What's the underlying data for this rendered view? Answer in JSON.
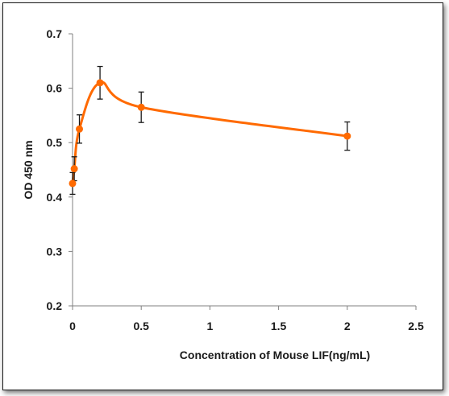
{
  "chart_data": {
    "type": "line",
    "title": "",
    "xlabel": "Concentration of Mouse LIF(ng/mL)",
    "ylabel": "OD 450 nm",
    "xlim": [
      0,
      2.5
    ],
    "ylim": [
      0.2,
      0.7
    ],
    "x_ticks": [
      0,
      0.5,
      1,
      1.5,
      2,
      2.5
    ],
    "x_tick_labels": [
      "0",
      "0.5",
      "1",
      "1.5",
      "2",
      "2.5"
    ],
    "y_ticks": [
      0.2,
      0.3,
      0.4,
      0.5,
      0.6,
      0.7
    ],
    "y_tick_labels": [
      "0.2",
      "0.3",
      "0.4",
      "0.5",
      "0.6",
      "0.7"
    ],
    "grid": false,
    "legend": "none",
    "series": [
      {
        "color": "#ff6a00",
        "smooth": true,
        "x": [
          0,
          0.0125,
          0.05,
          0.2,
          0.5,
          2
        ],
        "y": [
          0.425,
          0.452,
          0.525,
          0.61,
          0.565,
          0.512
        ],
        "error": [
          0.02,
          0.022,
          0.026,
          0.03,
          0.028,
          0.026
        ]
      }
    ]
  }
}
